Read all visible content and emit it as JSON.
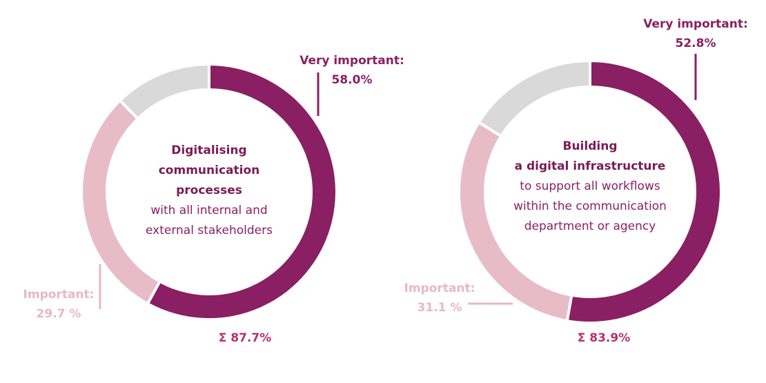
{
  "chart_data": [
    {
      "type": "donut",
      "title": [
        "Digitalising",
        "communication",
        "processes"
      ],
      "subtitle": [
        "with all internal and",
        "external stakeholders"
      ],
      "categories": [
        "Very important:",
        "Important:",
        null
      ],
      "values": [
        58.0,
        29.7,
        12.3
      ],
      "value_labels": [
        "58.0%",
        "29.7 %",
        null
      ],
      "colors": [
        "#8a1f63",
        "#e8bcc6",
        "#d9d9d9"
      ],
      "total_label": "Σ 87.7%"
    },
    {
      "type": "donut",
      "title": [
        "Building",
        "a digital infrastructure"
      ],
      "subtitle": [
        "to support all workflows",
        "within the communication",
        "department or agency"
      ],
      "categories": [
        "Very important:",
        "Important:",
        null
      ],
      "values": [
        52.8,
        31.1,
        16.1
      ],
      "value_labels": [
        "52.8%",
        "31.1 %",
        null
      ],
      "colors": [
        "#8a1f63",
        "#e8bcc6",
        "#d9d9d9"
      ],
      "total_label": "Σ 83.9%"
    }
  ]
}
